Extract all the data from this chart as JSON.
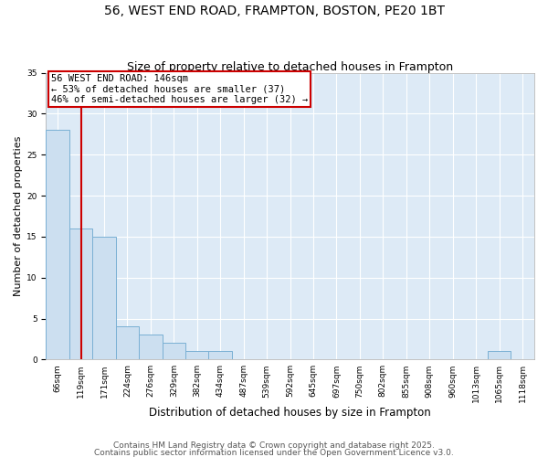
{
  "title": "56, WEST END ROAD, FRAMPTON, BOSTON, PE20 1BT",
  "subtitle": "Size of property relative to detached houses in Frampton",
  "xlabel": "Distribution of detached houses by size in Frampton",
  "ylabel": "Number of detached properties",
  "bar_values": [
    28,
    16,
    15,
    4,
    3,
    2,
    1,
    1,
    0,
    0,
    0,
    0,
    0,
    0,
    0,
    0,
    0,
    0,
    0,
    1,
    0
  ],
  "bin_labels": [
    "66sqm",
    "119sqm",
    "171sqm",
    "224sqm",
    "276sqm",
    "329sqm",
    "382sqm",
    "434sqm",
    "487sqm",
    "539sqm",
    "592sqm",
    "645sqm",
    "697sqm",
    "750sqm",
    "802sqm",
    "855sqm",
    "908sqm",
    "960sqm",
    "1013sqm",
    "1065sqm",
    "1118sqm"
  ],
  "bin_edges": [
    66,
    119,
    171,
    224,
    276,
    329,
    382,
    434,
    487,
    539,
    592,
    645,
    697,
    750,
    802,
    855,
    908,
    960,
    1013,
    1065,
    1118,
    1171
  ],
  "bar_color": "#ccdff0",
  "bar_edge_color": "#7ab0d4",
  "property_sqm": 146,
  "vline_color": "#cc0000",
  "annotation_text": "56 WEST END ROAD: 146sqm\n← 53% of detached houses are smaller (37)\n46% of semi-detached houses are larger (32) →",
  "annotation_box_color": "#ffffff",
  "annotation_box_edge": "#cc0000",
  "ylim": [
    0,
    35
  ],
  "yticks": [
    0,
    5,
    10,
    15,
    20,
    25,
    30,
    35
  ],
  "bg_color": "#ddeaf6",
  "grid_color": "#ffffff",
  "footer_line1": "Contains HM Land Registry data © Crown copyright and database right 2025.",
  "footer_line2": "Contains public sector information licensed under the Open Government Licence v3.0.",
  "title_fontsize": 10,
  "subtitle_fontsize": 9,
  "xlabel_fontsize": 8.5,
  "ylabel_fontsize": 8,
  "tick_fontsize": 6.5,
  "footer_fontsize": 6.5
}
